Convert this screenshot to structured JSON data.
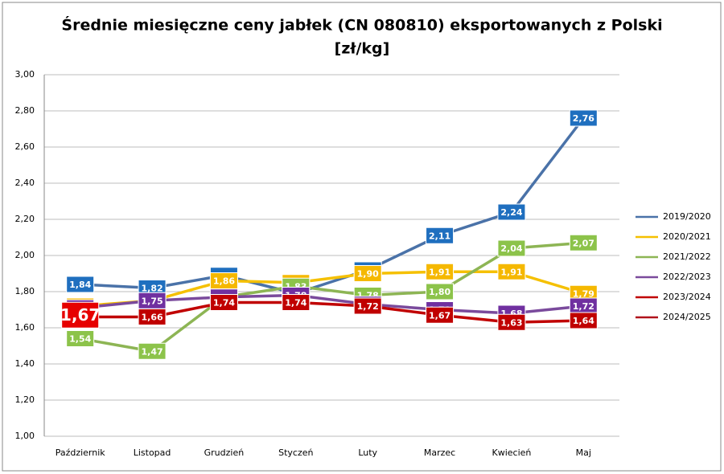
{
  "chart_data": {
    "type": "line",
    "title": [
      "Średnie miesięczne ceny jabłek (CN 080810) eksportowanych z Polski",
      "[zł/kg]"
    ],
    "categories": [
      "Październik",
      "Listopad",
      "Grudzień",
      "Styczeń",
      "Luty",
      "Marzec",
      "Kwiecień",
      "Maj"
    ],
    "series": [
      {
        "name": "2019/2020",
        "color": "#4a72a8",
        "values": [
          1.84,
          1.82,
          1.89,
          1.79,
          1.92,
          2.11,
          2.24,
          2.76
        ],
        "value_labels": [
          "1,84",
          "1,82",
          "1,89",
          "1,79",
          "1,92",
          "2,11",
          "2,24",
          "2,76"
        ],
        "label_color": "#1f6fbf"
      },
      {
        "name": "2020/2021",
        "color": "#f5c000",
        "values": [
          1.72,
          1.75,
          1.86,
          1.85,
          1.9,
          1.91,
          1.91,
          1.79
        ],
        "value_labels": [
          "1,72",
          "1,75",
          "1,86",
          "1,85",
          "1,90",
          "1,91",
          "1,91",
          "1,79"
        ],
        "label_color": "#f5b800"
      },
      {
        "name": "2021/2022",
        "color": "#8db554",
        "values": [
          1.54,
          1.47,
          1.77,
          1.83,
          1.78,
          1.8,
          2.04,
          2.07
        ],
        "value_labels": [
          "1,54",
          "1,47",
          "1,77",
          "1,83",
          "1,78",
          "1,80",
          "2,04",
          "2,07"
        ],
        "label_color": "#8cc34a"
      },
      {
        "name": "2022/2023",
        "color": "#7a4a9c",
        "values": [
          1.71,
          1.75,
          1.77,
          1.78,
          1.73,
          1.7,
          1.68,
          1.72
        ],
        "value_labels": [
          "1,71",
          "1,75",
          "1,77",
          "1,78",
          "1,73",
          "1,70",
          "1,68",
          "1,72"
        ],
        "label_color": "#7030a0"
      },
      {
        "name": "2023/2024",
        "color": "#c00000",
        "values": [
          1.66,
          1.66,
          1.74,
          1.74,
          1.72,
          1.67,
          1.63,
          1.64
        ],
        "value_labels": [
          "1,66",
          "1,66",
          "1,74",
          "1,74",
          "1,72",
          "1,67",
          "1,63",
          "1,64"
        ],
        "label_color": "#c00000"
      },
      {
        "name": "2024/2025",
        "color": "#b0121b",
        "values": [
          1.67,
          null,
          null,
          null,
          null,
          null,
          null,
          null
        ],
        "value_labels": [
          "1,67",
          null,
          null,
          null,
          null,
          null,
          null,
          null
        ],
        "label_color": "#e60000"
      }
    ],
    "ylim": [
      1.0,
      3.0
    ],
    "yticks": [
      {
        "value": 1.0,
        "label": "1,00"
      },
      {
        "value": 1.2,
        "label": "1,20"
      },
      {
        "value": 1.4,
        "label": "1,40"
      },
      {
        "value": 1.6,
        "label": "1,60"
      },
      {
        "value": 1.8,
        "label": "1,80"
      },
      {
        "value": 2.0,
        "label": "2,00"
      },
      {
        "value": 2.2,
        "label": "2,20"
      },
      {
        "value": 2.4,
        "label": "2,40"
      },
      {
        "value": 2.6,
        "label": "2,60"
      },
      {
        "value": 2.8,
        "label": "2,80"
      },
      {
        "value": 3.0,
        "label": "3,00"
      }
    ],
    "grid": true,
    "legend": "right"
  }
}
